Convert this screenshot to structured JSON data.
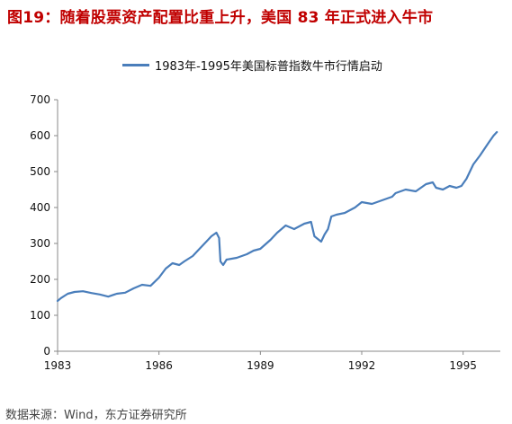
{
  "title": "图19：随着股票资产配置比重上升，美国 83 年正式进入牛市",
  "source": "数据来源：Wind，东方证券研究所",
  "colors": {
    "title": "#c00000",
    "series": "#4a7ebb",
    "axis": "#888888"
  },
  "chart_data": {
    "type": "line",
    "title": "",
    "xlabel": "",
    "ylabel": "",
    "grid": false,
    "legend_position": "top",
    "xlim": [
      1983,
      1996.1
    ],
    "ylim": [
      0,
      700
    ],
    "x_ticks": [
      "1983",
      "1986",
      "1989",
      "1992",
      "1995"
    ],
    "y_ticks": [
      "0",
      "100",
      "200",
      "300",
      "400",
      "500",
      "600",
      "700"
    ],
    "series": [
      {
        "name": "1983年-1995年美国标普指数牛市行情启动",
        "color": "#4a7ebb",
        "x": [
          1983.0,
          1983.1,
          1983.3,
          1983.5,
          1983.75,
          1984.0,
          1984.25,
          1984.5,
          1984.75,
          1985.0,
          1985.25,
          1985.5,
          1985.75,
          1986.0,
          1986.2,
          1986.4,
          1986.6,
          1986.75,
          1987.0,
          1987.2,
          1987.4,
          1987.55,
          1987.7,
          1987.78,
          1987.82,
          1987.9,
          1988.0,
          1988.3,
          1988.6,
          1988.8,
          1989.0,
          1989.3,
          1989.5,
          1989.75,
          1990.0,
          1990.3,
          1990.5,
          1990.6,
          1990.8,
          1990.9,
          1991.0,
          1991.1,
          1991.25,
          1991.5,
          1991.8,
          1992.0,
          1992.3,
          1992.6,
          1992.9,
          1993.0,
          1993.3,
          1993.6,
          1993.9,
          1994.1,
          1994.2,
          1994.4,
          1994.6,
          1994.8,
          1994.95,
          1995.1,
          1995.3,
          1995.5,
          1995.75,
          1995.9,
          1996.0
        ],
        "y": [
          140,
          148,
          160,
          165,
          167,
          162,
          158,
          152,
          160,
          163,
          175,
          185,
          182,
          205,
          230,
          245,
          240,
          250,
          265,
          285,
          305,
          320,
          330,
          315,
          250,
          240,
          255,
          260,
          270,
          280,
          285,
          310,
          330,
          350,
          340,
          355,
          360,
          320,
          305,
          325,
          340,
          375,
          380,
          385,
          400,
          415,
          410,
          420,
          430,
          440,
          450,
          445,
          465,
          470,
          455,
          450,
          460,
          455,
          460,
          480,
          520,
          545,
          580,
          600,
          610
        ]
      }
    ]
  }
}
